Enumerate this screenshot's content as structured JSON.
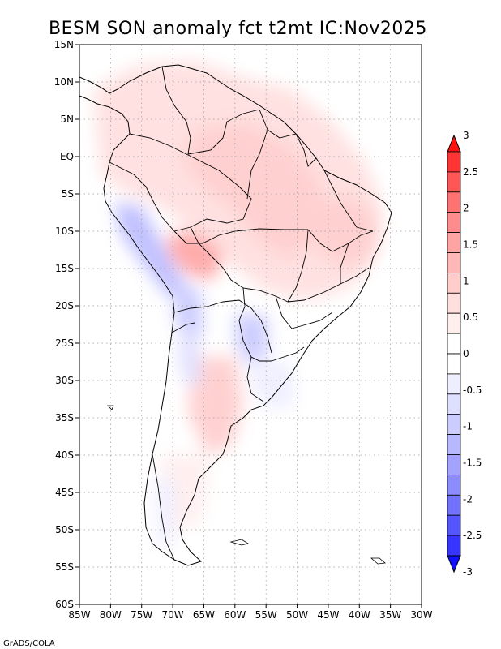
{
  "title": "BESM   SON anomaly fct t2mt IC:Nov2025",
  "credit": "GrADS/COLA",
  "map": {
    "type": "filled-contour-map",
    "region": "South America",
    "lon_range": [
      -85,
      -30
    ],
    "lat_range": [
      -60,
      15
    ],
    "x_ticks": [
      "85W",
      "80W",
      "75W",
      "70W",
      "65W",
      "60W",
      "55W",
      "50W",
      "45W",
      "40W",
      "35W",
      "30W"
    ],
    "y_ticks": [
      "15N",
      "10N",
      "5N",
      "EQ",
      "5S",
      "10S",
      "15S",
      "20S",
      "25S",
      "30S",
      "35S",
      "40S",
      "45S",
      "50S",
      "55S",
      "60S"
    ]
  },
  "colorbar": {
    "labels": [
      "3",
      "2.5",
      "2",
      "1.5",
      "1",
      "0.5",
      "0",
      "-0.5",
      "-1",
      "-1.5",
      "-2",
      "-2.5",
      "-3"
    ],
    "colors": {
      "warm": [
        "#ff1010",
        "#ff3535",
        "#ff5555",
        "#ff7272",
        "#ff8c8c",
        "#ffa3a3",
        "#ffb8b8",
        "#ffcccc",
        "#ffdede",
        "#ffeeee"
      ],
      "cool": [
        "#eeeeff",
        "#dedeff",
        "#ccccff",
        "#b8b8ff",
        "#a3a3ff",
        "#8c8cff",
        "#7272ff",
        "#5555ff",
        "#3535ff",
        "#1010ff"
      ],
      "neutral": "#ffffff"
    }
  }
}
